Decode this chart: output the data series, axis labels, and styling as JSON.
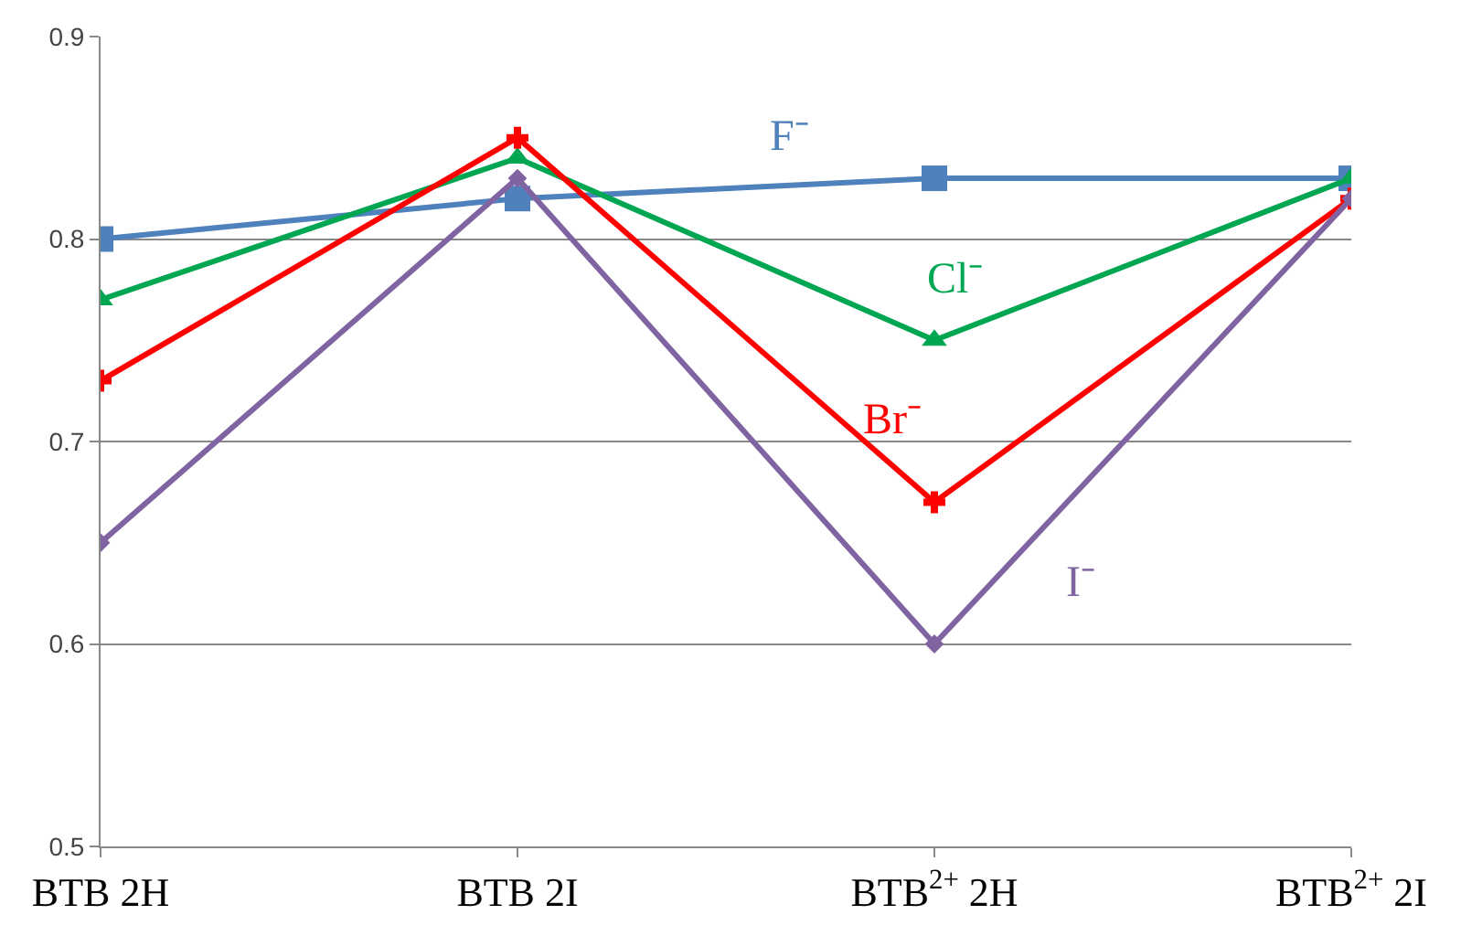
{
  "chart_data": {
    "type": "line",
    "categories": [
      "BTB 2H",
      "BTB 2I",
      "BTB$^{2+}$ 2H",
      "BTB$^{2+}$ 2I"
    ],
    "series": [
      {
        "name": "F⁻",
        "color": "#4f81bd",
        "marker": "square",
        "values": [
          0.8,
          0.82,
          0.83,
          0.83
        ]
      },
      {
        "name": "Cl⁻",
        "color": "#00a651",
        "marker": "triangle",
        "values": [
          0.77,
          0.84,
          0.75,
          0.83
        ]
      },
      {
        "name": "Br⁻",
        "color": "#ff0000",
        "marker": "cross",
        "values": [
          0.73,
          0.85,
          0.67,
          0.82
        ]
      },
      {
        "name": "I⁻",
        "color": "#8064a2",
        "marker": "diamond",
        "values": [
          0.65,
          0.83,
          0.6,
          0.82
        ]
      }
    ],
    "ylim": [
      0.5,
      0.9
    ],
    "yticks": [
      0.5,
      0.6,
      0.7,
      0.8,
      0.9
    ],
    "grid": "y",
    "legend": false
  }
}
